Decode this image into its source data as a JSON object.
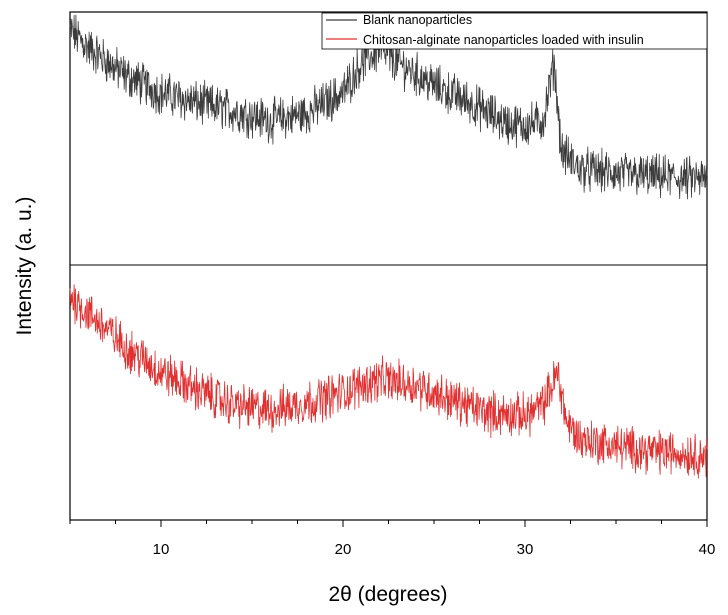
{
  "chart_data": {
    "type": "line",
    "xlabel": "2θ (degrees)",
    "ylabel": "Intensity (a. u.)",
    "xlim": [
      5,
      40
    ],
    "x_ticks": [
      "10",
      "20",
      "30",
      "40"
    ],
    "y_ticks": [],
    "stacked_offset_panels": true,
    "grid": false,
    "legend_position": "top-right",
    "series": [
      {
        "name": "Blank nanoparticles",
        "color": "#3c3c3c",
        "panel": "top",
        "profile_x": [
          5,
          6,
          8,
          10,
          12,
          14,
          16,
          18,
          20,
          21,
          22,
          23,
          25,
          27,
          29,
          30,
          31,
          31.6,
          32,
          33,
          35,
          37,
          39,
          40
        ],
        "profile_y": [
          0.93,
          0.86,
          0.75,
          0.68,
          0.64,
          0.61,
          0.57,
          0.6,
          0.68,
          0.8,
          0.85,
          0.8,
          0.71,
          0.64,
          0.56,
          0.55,
          0.57,
          0.8,
          0.45,
          0.38,
          0.36,
          0.35,
          0.34,
          0.34
        ]
      },
      {
        "name": "Chitosan-alginate nanoparticles loaded with insulin",
        "color": "#e03030",
        "panel": "bottom",
        "profile_x": [
          5,
          6,
          7,
          8,
          10,
          12,
          14,
          16,
          18,
          20,
          21,
          22,
          24,
          26,
          28,
          30,
          31,
          31.8,
          32.3,
          33,
          35,
          37,
          39,
          40
        ],
        "profile_y": [
          0.88,
          0.81,
          0.75,
          0.68,
          0.58,
          0.51,
          0.45,
          0.43,
          0.46,
          0.5,
          0.53,
          0.55,
          0.53,
          0.47,
          0.42,
          0.41,
          0.45,
          0.58,
          0.38,
          0.32,
          0.29,
          0.27,
          0.26,
          0.25
        ]
      }
    ]
  }
}
